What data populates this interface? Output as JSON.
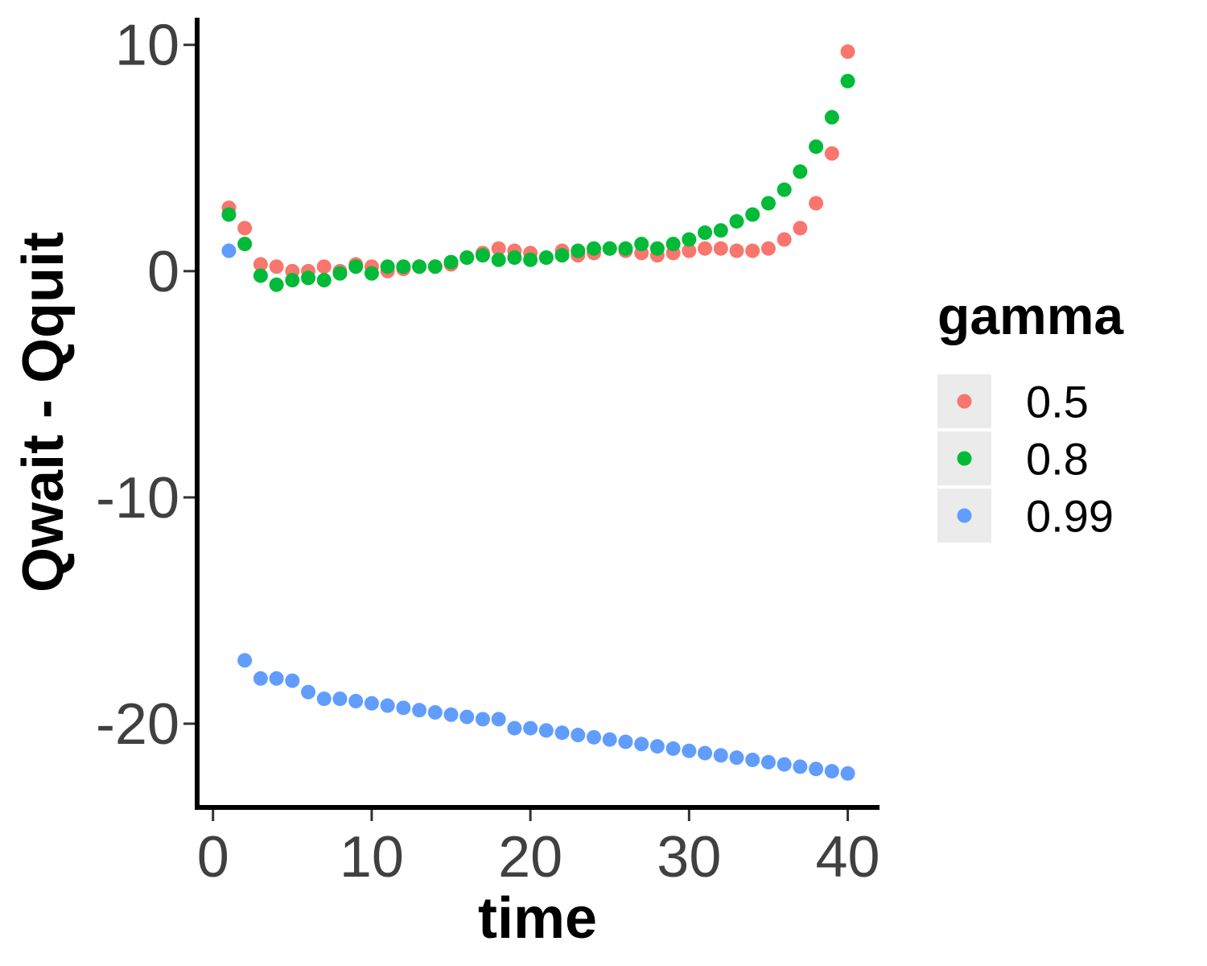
{
  "chart_data": {
    "type": "scatter",
    "title": "",
    "xlabel": "time",
    "ylabel": "Qwait - Qquit",
    "xlim": [
      -1,
      42
    ],
    "ylim": [
      -23.7,
      11.2
    ],
    "x_ticks": [
      0,
      10,
      20,
      30,
      40
    ],
    "y_ticks": [
      10,
      0,
      -10,
      -20
    ],
    "x_tick_labels": [
      "0",
      "10",
      "20",
      "30",
      "40"
    ],
    "y_tick_labels": [
      "10",
      "0",
      "-10",
      "-20"
    ],
    "grid": false,
    "legend": {
      "title": "gamma",
      "position": "right"
    },
    "series": [
      {
        "name": "0.5",
        "color": "#F8766D",
        "x": [
          1,
          2,
          3,
          4,
          5,
          6,
          7,
          8,
          9,
          10,
          11,
          12,
          13,
          14,
          15,
          16,
          17,
          18,
          19,
          20,
          21,
          22,
          23,
          24,
          25,
          26,
          27,
          28,
          29,
          30,
          31,
          32,
          33,
          34,
          35,
          36,
          37,
          38,
          39,
          40
        ],
        "y": [
          2.8,
          1.9,
          0.3,
          0.2,
          0.0,
          0.0,
          0.2,
          0.0,
          0.3,
          0.2,
          0.0,
          0.1,
          0.2,
          0.2,
          0.3,
          0.6,
          0.8,
          1.0,
          0.9,
          0.8,
          0.6,
          0.9,
          0.7,
          0.8,
          1.0,
          0.9,
          0.8,
          0.7,
          0.8,
          0.9,
          1.0,
          1.0,
          0.9,
          0.9,
          1.0,
          1.4,
          1.9,
          3.0,
          5.2,
          9.7
        ]
      },
      {
        "name": "0.8",
        "color": "#00BA38",
        "x": [
          1,
          2,
          3,
          4,
          5,
          6,
          7,
          8,
          9,
          10,
          11,
          12,
          13,
          14,
          15,
          16,
          17,
          18,
          19,
          20,
          21,
          22,
          23,
          24,
          25,
          26,
          27,
          28,
          29,
          30,
          31,
          32,
          33,
          34,
          35,
          36,
          37,
          38,
          39,
          40
        ],
        "y": [
          2.5,
          1.2,
          -0.2,
          -0.6,
          -0.4,
          -0.3,
          -0.4,
          -0.1,
          0.2,
          -0.1,
          0.2,
          0.2,
          0.2,
          0.2,
          0.4,
          0.6,
          0.7,
          0.5,
          0.6,
          0.5,
          0.6,
          0.7,
          0.9,
          1.0,
          1.0,
          1.0,
          1.2,
          1.0,
          1.2,
          1.4,
          1.7,
          1.8,
          2.2,
          2.5,
          3.0,
          3.6,
          4.4,
          5.5,
          6.8,
          8.4
        ]
      },
      {
        "name": "0.99",
        "color": "#619CFF",
        "x": [
          1,
          2,
          3,
          4,
          5,
          6,
          7,
          8,
          9,
          10,
          11,
          12,
          13,
          14,
          15,
          16,
          17,
          18,
          19,
          20,
          21,
          22,
          23,
          24,
          25,
          26,
          27,
          28,
          29,
          30,
          31,
          32,
          33,
          34,
          35,
          36,
          37,
          38,
          39,
          40
        ],
        "y": [
          0.9,
          -17.2,
          -18.0,
          -18.0,
          -18.1,
          -18.6,
          -18.9,
          -18.9,
          -19.0,
          -19.1,
          -19.2,
          -19.3,
          -19.4,
          -19.5,
          -19.6,
          -19.7,
          -19.8,
          -19.8,
          -20.2,
          -20.2,
          -20.3,
          -20.4,
          -20.5,
          -20.6,
          -20.7,
          -20.8,
          -20.9,
          -21.0,
          -21.1,
          -21.2,
          -21.3,
          -21.4,
          -21.5,
          -21.6,
          -21.7,
          -21.8,
          -21.9,
          -22.0,
          -22.1,
          -22.2
        ]
      }
    ]
  }
}
